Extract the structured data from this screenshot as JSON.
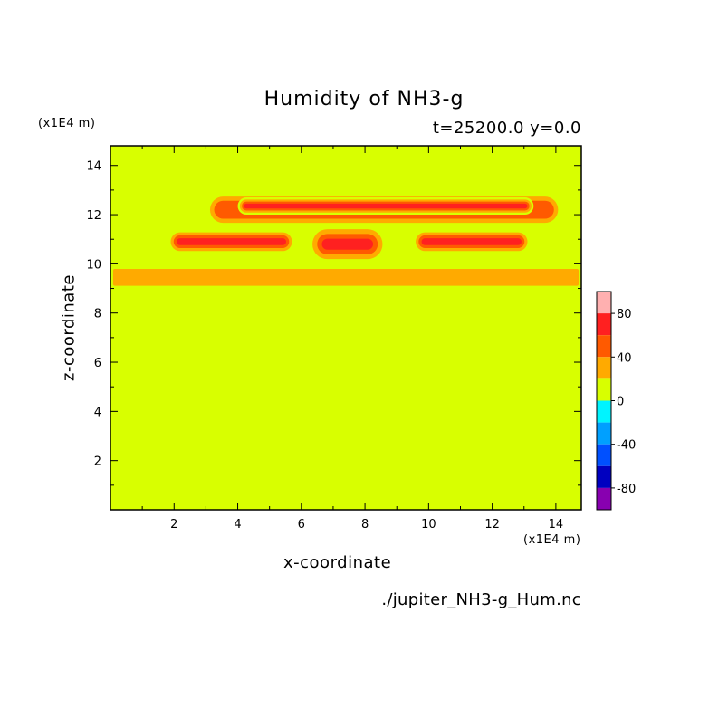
{
  "chart_data": {
    "type": "heatmap",
    "title": "Humidity of NH3-g",
    "subtitle": "t=25200.0 y=0.0",
    "xlabel": "x-coordinate",
    "ylabel": "z-coordinate",
    "x_unit": "(x1E4 m)",
    "y_unit": "(x1E4 m)",
    "xlim": [
      0,
      14.8
    ],
    "ylim": [
      0,
      14.8
    ],
    "xticks": [
      2,
      4,
      6,
      8,
      10,
      12,
      14
    ],
    "yticks": [
      2,
      4,
      6,
      8,
      10,
      12,
      14
    ],
    "colorbar": {
      "range": [
        -100,
        100
      ],
      "levels": [
        -100,
        -80,
        -60,
        -40,
        -20,
        0,
        20,
        40,
        60,
        80,
        100
      ],
      "tick_labels": [
        80,
        40,
        0,
        -40,
        -80
      ],
      "colors": [
        "#ffb0b0",
        "#ff2020",
        "#ff5a00",
        "#ffaa00",
        "#d8ff00",
        "#00f4ff",
        "#00a0ff",
        "#0050ff",
        "#0000c0",
        "#8800b0"
      ]
    },
    "background_value": 10,
    "features": [
      {
        "name": "humid-layer-base",
        "x_range": [
          0,
          14.8
        ],
        "z_range": [
          9.0,
          9.9
        ],
        "value": 30
      },
      {
        "name": "upper-band",
        "x_range": [
          3.0,
          14.2
        ],
        "z_range": [
          11.5,
          12.9
        ],
        "value": 60
      },
      {
        "name": "upper-band-core",
        "x_range": [
          4.0,
          13.3
        ],
        "z_range": [
          12.0,
          12.7
        ],
        "value": 90
      },
      {
        "name": "left-lobe",
        "x_range": [
          1.8,
          5.8
        ],
        "z_range": [
          10.4,
          11.4
        ],
        "value": 90
      },
      {
        "name": "right-lobe",
        "x_range": [
          9.5,
          13.2
        ],
        "z_range": [
          10.4,
          11.4
        ],
        "value": 90
      },
      {
        "name": "center-peak",
        "x_range": [
          6.2,
          8.7
        ],
        "z_range": [
          10.0,
          11.6
        ],
        "value": 100
      }
    ],
    "source": "./jupiter_NH3-g_Hum.nc"
  }
}
